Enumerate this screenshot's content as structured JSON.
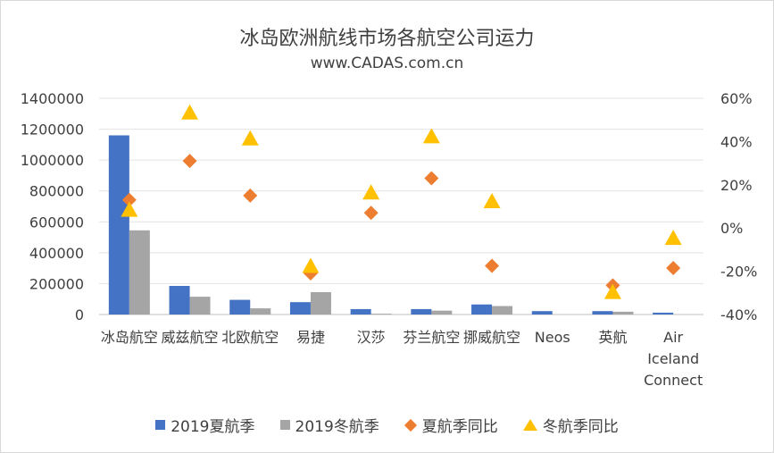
{
  "chart_data": {
    "type": "bar",
    "title": "冰岛欧洲航线市场各航空公司运力",
    "subtitle": "www.CADAS.com.cn",
    "categories": [
      [
        "冰岛航空"
      ],
      [
        "威兹航空"
      ],
      [
        "北欧航空"
      ],
      [
        "易捷"
      ],
      [
        "汉莎"
      ],
      [
        "芬兰航空"
      ],
      [
        "挪威航空"
      ],
      [
        "Neos"
      ],
      [
        "英航"
      ],
      [
        "Air",
        "Iceland",
        "Connect"
      ]
    ],
    "y_left": {
      "ylim": [
        0,
        1400000
      ],
      "ticks": [
        0,
        200000,
        400000,
        600000,
        800000,
        1000000,
        1200000,
        1400000
      ],
      "tick_labels": [
        "0",
        "200000",
        "400000",
        "600000",
        "800000",
        "1000000",
        "1200000",
        "1400000"
      ]
    },
    "y_right": {
      "ylim": [
        -0.4,
        0.6
      ],
      "ticks": [
        -0.4,
        -0.2,
        0,
        0.2,
        0.4,
        0.6
      ],
      "tick_labels": [
        "-40%",
        "-20%",
        "0%",
        "20%",
        "40%",
        "60%"
      ]
    },
    "grid": true,
    "legend_position": "bottom",
    "series": [
      {
        "name": "2019夏航季",
        "kind": "bar",
        "axis": "left",
        "color": "#4472c4",
        "values": [
          1160000,
          185000,
          95000,
          80000,
          35000,
          35000,
          65000,
          22000,
          22000,
          12000
        ]
      },
      {
        "name": "2019冬航季",
        "kind": "bar",
        "axis": "left",
        "color": "#a5a5a5",
        "values": [
          545000,
          115000,
          40000,
          145000,
          5000,
          25000,
          55000,
          null,
          18000,
          null
        ]
      },
      {
        "name": "夏航季同比",
        "kind": "diamond",
        "axis": "right",
        "color": "#ed7d31",
        "values": [
          0.13,
          0.31,
          0.15,
          -0.21,
          0.07,
          0.23,
          -0.175,
          null,
          -0.265,
          -0.185
        ]
      },
      {
        "name": "冬航季同比",
        "kind": "triangle",
        "axis": "right",
        "color": "#ffc000",
        "values": [
          0.08,
          0.53,
          0.41,
          -0.18,
          0.16,
          0.42,
          0.12,
          null,
          -0.3,
          -0.05
        ]
      }
    ]
  }
}
